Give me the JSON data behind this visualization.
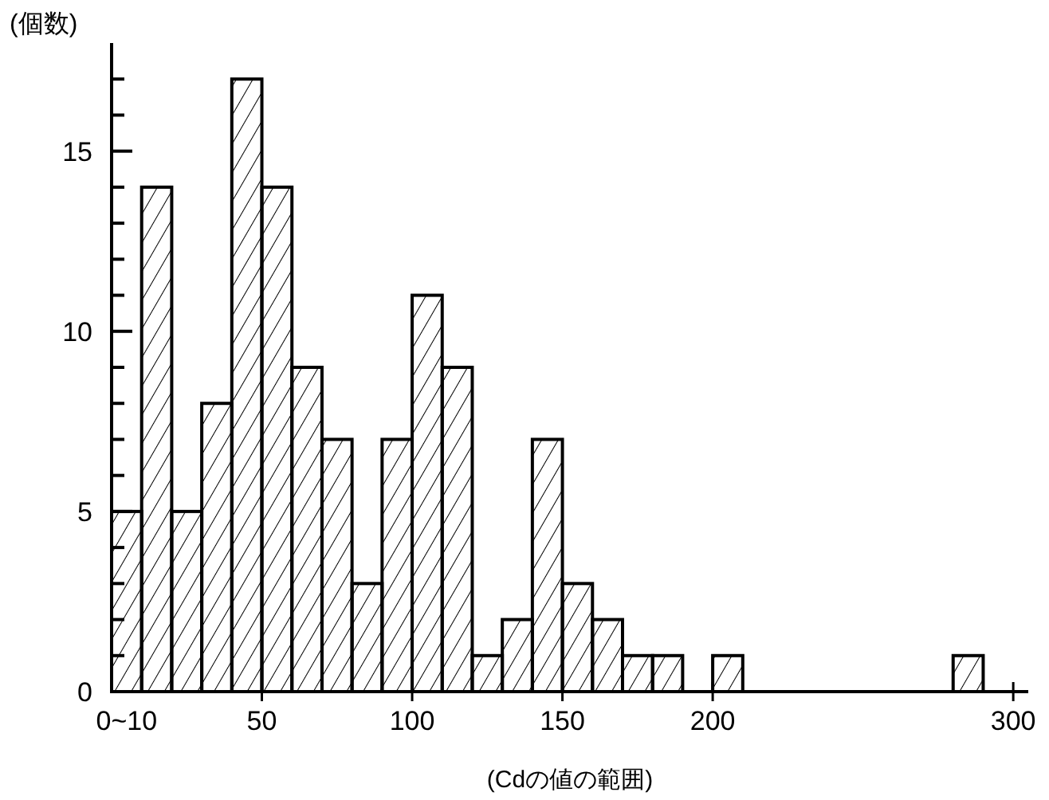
{
  "chart_data": {
    "type": "histogram",
    "xlabel": "(Cdの値の範囲)",
    "ylabel": "(個数)",
    "bins": [
      0,
      10,
      20,
      30,
      40,
      50,
      60,
      70,
      80,
      90,
      100,
      110,
      120,
      130,
      140,
      150,
      160,
      170,
      180,
      190,
      200,
      210,
      280,
      290
    ],
    "values": [
      5,
      14,
      5,
      8,
      17,
      14,
      9,
      7,
      3,
      7,
      11,
      9,
      1,
      2,
      7,
      3,
      2,
      1,
      1,
      0,
      1,
      null,
      1
    ],
    "color": "#000000",
    "xlim": [
      0,
      305
    ],
    "xticks": [
      {
        "value": 5,
        "label": "0~10"
      },
      50,
      100,
      150,
      200,
      300
    ],
    "ylim": [
      0,
      18
    ],
    "yticks": [
      0,
      {
        "value": 1,
        "label": null
      },
      {
        "value": 2,
        "label": null
      },
      {
        "value": 3,
        "label": null
      },
      {
        "value": 4,
        "label": null
      },
      5,
      {
        "value": 6,
        "label": null
      },
      {
        "value": 7,
        "label": null
      },
      {
        "value": 8,
        "label": null
      },
      {
        "value": 9,
        "label": null
      },
      10,
      {
        "value": 11,
        "label": null
      },
      {
        "value": 12,
        "label": null
      },
      {
        "value": 13,
        "label": null
      },
      {
        "value": 14,
        "label": null
      },
      15,
      {
        "value": 16,
        "label": null
      },
      {
        "value": 17,
        "label": null
      }
    ]
  }
}
